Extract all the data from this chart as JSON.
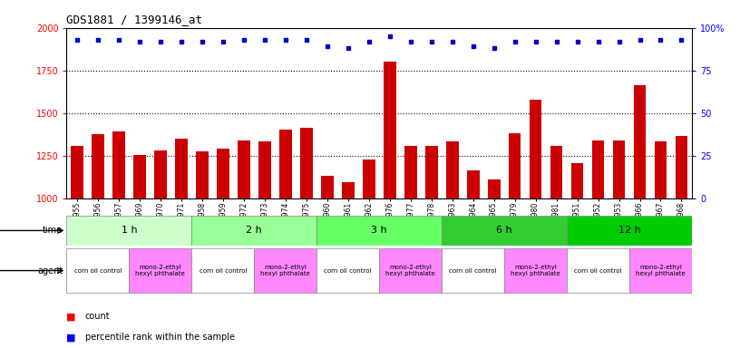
{
  "title": "GDS1881 / 1399146_at",
  "samples": [
    "GSM100955",
    "GSM100956",
    "GSM100957",
    "GSM100969",
    "GSM100970",
    "GSM100971",
    "GSM100958",
    "GSM100959",
    "GSM100972",
    "GSM100973",
    "GSM100974",
    "GSM100975",
    "GSM100960",
    "GSM100961",
    "GSM100962",
    "GSM100976",
    "GSM100977",
    "GSM100978",
    "GSM100963",
    "GSM100964",
    "GSM100965",
    "GSM100979",
    "GSM100980",
    "GSM100981",
    "GSM100951",
    "GSM100952",
    "GSM100953",
    "GSM100966",
    "GSM100967",
    "GSM100968"
  ],
  "counts": [
    1305,
    1375,
    1390,
    1255,
    1280,
    1350,
    1275,
    1290,
    1340,
    1335,
    1405,
    1415,
    1130,
    1095,
    1230,
    1800,
    1305,
    1310,
    1335,
    1165,
    1110,
    1380,
    1580,
    1310,
    1205,
    1340,
    1340,
    1665,
    1335,
    1365
  ],
  "percentiles": [
    93,
    93,
    93,
    92,
    92,
    92,
    92,
    92,
    93,
    93,
    93,
    93,
    89,
    88,
    92,
    95,
    92,
    92,
    92,
    89,
    88,
    92,
    92,
    92,
    92,
    92,
    92,
    93,
    93,
    93
  ],
  "time_groups": [
    {
      "label": "1 h",
      "start": 0,
      "end": 6,
      "color": "#ccffcc"
    },
    {
      "label": "2 h",
      "start": 6,
      "end": 12,
      "color": "#99ff99"
    },
    {
      "label": "3 h",
      "start": 12,
      "end": 18,
      "color": "#66ff66"
    },
    {
      "label": "6 h",
      "start": 18,
      "end": 24,
      "color": "#33cc33"
    },
    {
      "label": "12 h",
      "start": 24,
      "end": 30,
      "color": "#00cc00"
    }
  ],
  "agent_groups": [
    {
      "label": "corn oil control",
      "start": 0,
      "end": 3,
      "color": "#ffffff"
    },
    {
      "label": "mono-2-ethyl\nhexyl phthalate",
      "start": 3,
      "end": 6,
      "color": "#ff88ff"
    },
    {
      "label": "corn oil control",
      "start": 6,
      "end": 9,
      "color": "#ffffff"
    },
    {
      "label": "mono-2-ethyl\nhexyl phthalate",
      "start": 9,
      "end": 12,
      "color": "#ff88ff"
    },
    {
      "label": "corn oil control",
      "start": 12,
      "end": 15,
      "color": "#ffffff"
    },
    {
      "label": "mono-2-ethyl\nhexyl phthalate",
      "start": 15,
      "end": 18,
      "color": "#ff88ff"
    },
    {
      "label": "corn oil control",
      "start": 18,
      "end": 21,
      "color": "#ffffff"
    },
    {
      "label": "mono-2-ethyl\nhexyl phthalate",
      "start": 21,
      "end": 24,
      "color": "#ff88ff"
    },
    {
      "label": "corn oil control",
      "start": 24,
      "end": 27,
      "color": "#ffffff"
    },
    {
      "label": "mono-2-ethyl\nhexyl phthalate",
      "start": 27,
      "end": 30,
      "color": "#ff88ff"
    }
  ],
  "ylim": [
    1000,
    2000
  ],
  "yticks": [
    1000,
    1250,
    1500,
    1750,
    2000
  ],
  "right_yticks": [
    0,
    25,
    50,
    75,
    100
  ],
  "bar_color": "#cc0000",
  "dot_color": "#0000cc",
  "background_color": "#ffffff",
  "time_label": "time",
  "agent_label": "agent",
  "legend_count": "count",
  "legend_pct": "percentile rank within the sample"
}
